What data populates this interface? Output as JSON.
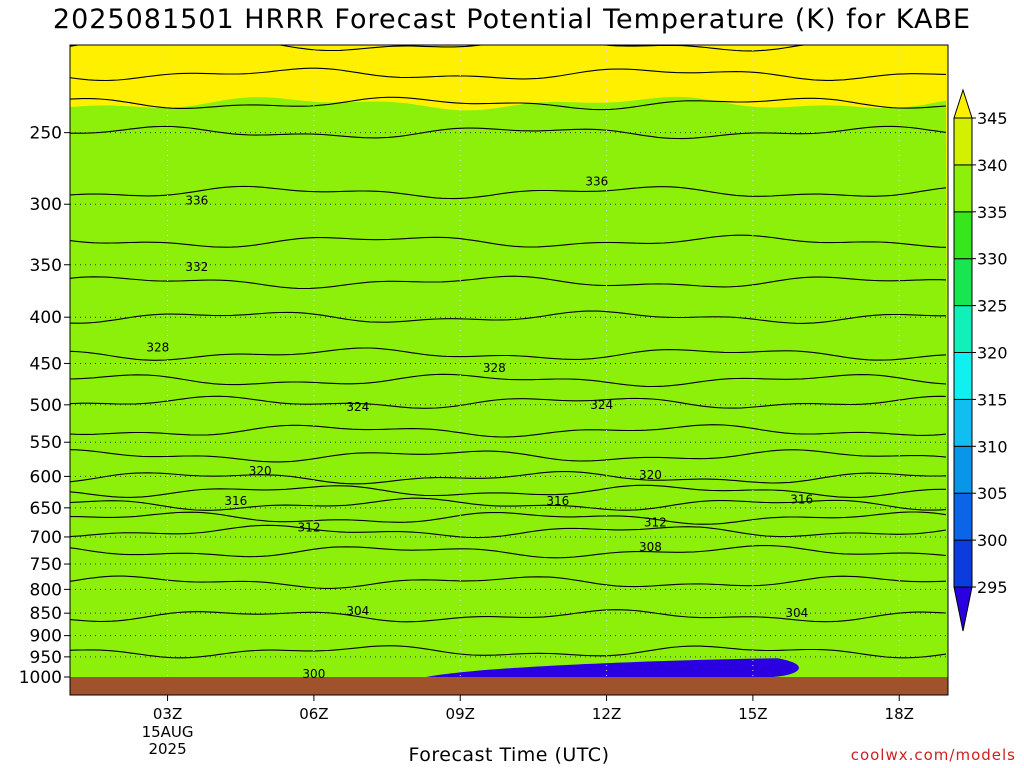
{
  "title": "2025081501 HRRR Forecast Potential Temperature (K) for KABE",
  "credit": "coolwx.com/models",
  "chart_data": {
    "type": "heatmap",
    "title": "2025081501 HRRR Forecast Potential Temperature (K) for KABE",
    "xlabel": "Forecast Time (UTC)",
    "ylabel": "",
    "x_start_hour_utc": 1,
    "x_end_hour_utc": 19,
    "x_ticks": [
      {
        "hour": 3,
        "label": "03Z",
        "sub": [
          "15AUG",
          "2025"
        ]
      },
      {
        "hour": 6,
        "label": "06Z",
        "sub": []
      },
      {
        "hour": 9,
        "label": "09Z",
        "sub": []
      },
      {
        "hour": 12,
        "label": "12Z",
        "sub": []
      },
      {
        "hour": 15,
        "label": "15Z",
        "sub": []
      },
      {
        "hour": 18,
        "label": "18Z",
        "sub": []
      }
    ],
    "y_axis": "pressure (hPa)",
    "ylim": [
      1000,
      200
    ],
    "y_ticks": [
      250,
      300,
      350,
      400,
      450,
      500,
      550,
      600,
      650,
      700,
      750,
      800,
      850,
      900,
      950,
      1000
    ],
    "grid": "dotted",
    "colorbar": {
      "levels": [
        295,
        300,
        305,
        310,
        315,
        320,
        325,
        330,
        335,
        340,
        345
      ],
      "colors": [
        "#0a14c8",
        "#0a3cde",
        "#0c64e6",
        "#0a96e8",
        "#10bef0",
        "#10f0f0",
        "#10f0b8",
        "#18e650",
        "#38e61e",
        "#8cf00a",
        "#d2f000",
        "#fff000"
      ],
      "under_color": "#2a00e0",
      "over_color": "#fff000"
    },
    "theta_profile": [
      {
        "p": 1000,
        "theta": 300.5
      },
      {
        "p": 950,
        "theta": 301.8
      },
      {
        "p": 900,
        "theta": 302.6
      },
      {
        "p": 850,
        "theta": 304.2
      },
      {
        "p": 800,
        "theta": 305.6
      },
      {
        "p": 750,
        "theta": 307.0
      },
      {
        "p": 700,
        "theta": 309.2
      },
      {
        "p": 650,
        "theta": 313.5
      },
      {
        "p": 600,
        "theta": 318.2
      },
      {
        "p": 550,
        "theta": 321.2
      },
      {
        "p": 500,
        "theta": 323.8
      },
      {
        "p": 450,
        "theta": 327.5
      },
      {
        "p": 400,
        "theta": 330.0
      },
      {
        "p": 350,
        "theta": 333.0
      },
      {
        "p": 300,
        "theta": 335.6
      },
      {
        "p": 250,
        "theta": 338.0
      },
      {
        "p": 200,
        "theta": 344.0
      }
    ],
    "contour_labels": [
      {
        "value": "336",
        "hour": 3.6,
        "p": 297
      },
      {
        "value": "336",
        "hour": 11.8,
        "p": 283
      },
      {
        "value": "332",
        "hour": 3.6,
        "p": 352
      },
      {
        "value": "328",
        "hour": 2.8,
        "p": 432
      },
      {
        "value": "328",
        "hour": 9.7,
        "p": 455
      },
      {
        "value": "324",
        "hour": 6.9,
        "p": 503
      },
      {
        "value": "324",
        "hour": 11.9,
        "p": 500
      },
      {
        "value": "320",
        "hour": 4.9,
        "p": 592
      },
      {
        "value": "320",
        "hour": 12.9,
        "p": 598
      },
      {
        "value": "316",
        "hour": 4.4,
        "p": 639
      },
      {
        "value": "316",
        "hour": 11.0,
        "p": 639
      },
      {
        "value": "316",
        "hour": 16.0,
        "p": 636
      },
      {
        "value": "312",
        "hour": 5.9,
        "p": 683
      },
      {
        "value": "312",
        "hour": 13.0,
        "p": 675
      },
      {
        "value": "308",
        "hour": 12.9,
        "p": 718
      },
      {
        "value": "304",
        "hour": 6.9,
        "p": 845
      },
      {
        "value": "304",
        "hour": 15.9,
        "p": 850
      },
      {
        "value": "300",
        "hour": 6.0,
        "p": 993
      }
    ],
    "ground": {
      "color": "#a0522d",
      "below_p": 1000
    }
  }
}
